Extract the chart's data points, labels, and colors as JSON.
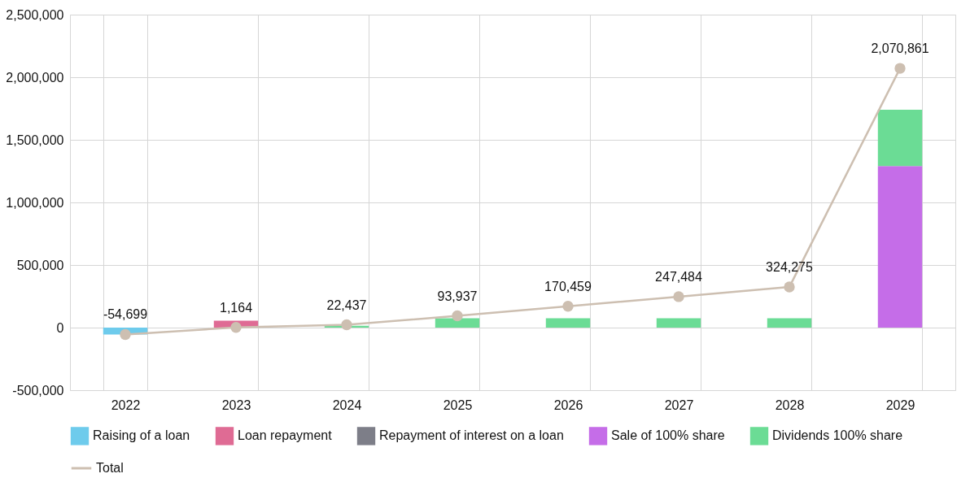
{
  "chart_data": {
    "type": "bar",
    "stacked": true,
    "categories": [
      "2022",
      "2023",
      "2024",
      "2025",
      "2026",
      "2027",
      "2028",
      "2029"
    ],
    "series": [
      {
        "name": "Raising of a loan",
        "color": "#6ecbec",
        "values": [
          -55000,
          null,
          null,
          null,
          null,
          null,
          null,
          null
        ]
      },
      {
        "name": "Loan repayment",
        "color": "#df6b94",
        "values": [
          null,
          55000,
          null,
          null,
          null,
          null,
          null,
          null
        ]
      },
      {
        "name": "Repayment of interest on a loan",
        "color": "#7d7e88",
        "values": [
          null,
          null,
          null,
          null,
          null,
          null,
          null,
          null
        ]
      },
      {
        "name": "Sale of 100% share",
        "color": "#c56de8",
        "values": [
          null,
          null,
          null,
          null,
          null,
          null,
          null,
          1290000
        ]
      },
      {
        "name": "Dividends 100% share",
        "color": "#6bdc95",
        "values": [
          null,
          null,
          14000,
          75000,
          75000,
          75000,
          75000,
          450000
        ]
      },
      {
        "name": "Total",
        "type": "line",
        "color": "#cdbfb1",
        "values": [
          -54699,
          1164,
          22437,
          93937,
          170459,
          247484,
          324275,
          2070861
        ],
        "value_labels": [
          "-54,699",
          "1,164",
          "22,437",
          "93,937",
          "170,459",
          "247,484",
          "324,275",
          "2,070,861"
        ]
      }
    ],
    "ylim": [
      -500000,
      2500000
    ],
    "yticks": [
      {
        "value": -500000,
        "label": "-500,000"
      },
      {
        "value": 0,
        "label": "0"
      },
      {
        "value": 500000,
        "label": "500,000"
      },
      {
        "value": 1000000,
        "label": "1,000,000"
      },
      {
        "value": 1500000,
        "label": "1,500,000"
      },
      {
        "value": 2000000,
        "label": "2,000,000"
      },
      {
        "value": 2500000,
        "label": "2,500,000"
      }
    ],
    "grid": true,
    "legend": "bottom",
    "marker": "circle"
  }
}
